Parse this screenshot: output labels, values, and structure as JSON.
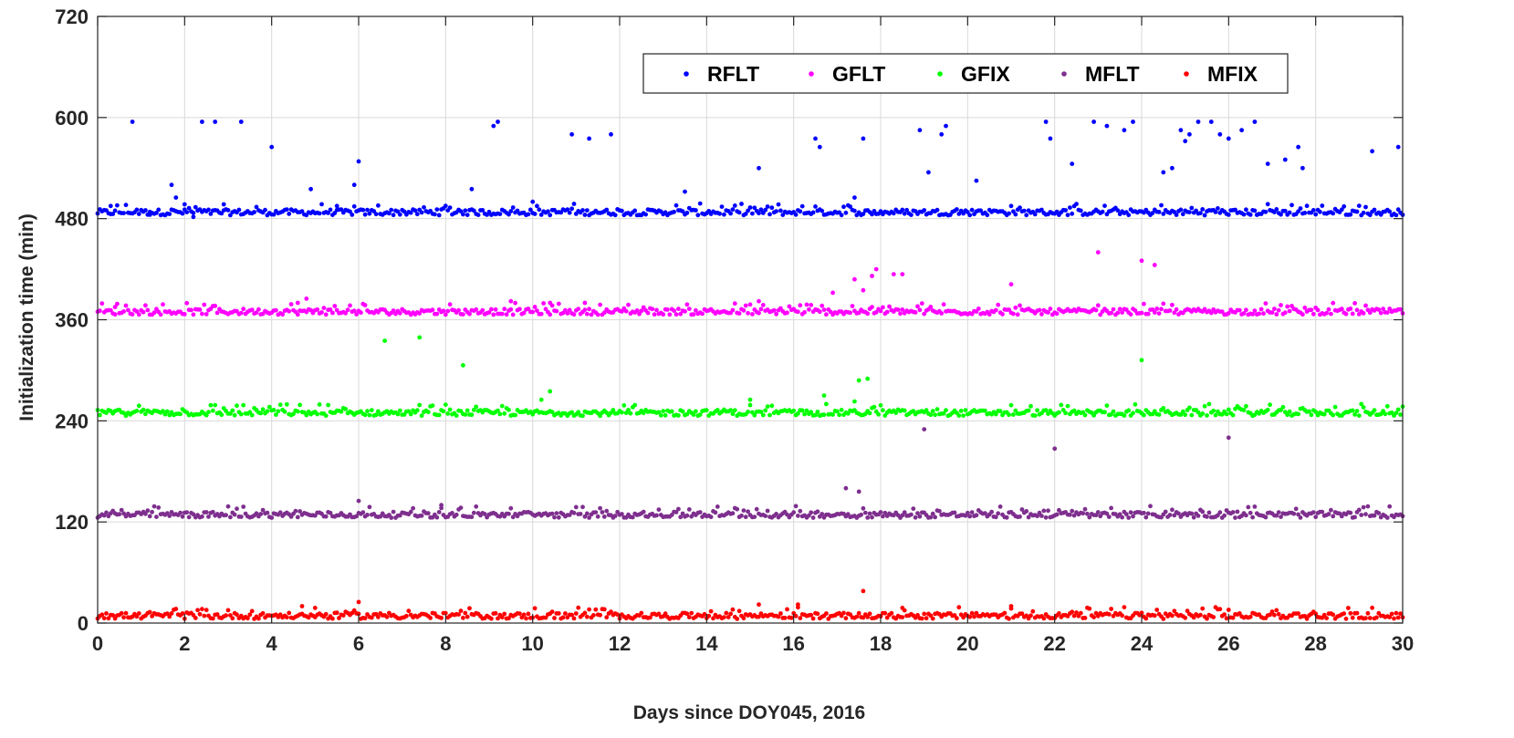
{
  "chart_data": {
    "type": "scatter",
    "title": "",
    "xlabel": "Days since DOY045, 2016",
    "ylabel": "Initialization time (min)",
    "xlim": [
      0,
      30
    ],
    "ylim": [
      0,
      720
    ],
    "xticks": [
      0,
      2,
      4,
      6,
      8,
      10,
      12,
      14,
      16,
      18,
      20,
      22,
      24,
      26,
      28,
      30
    ],
    "yticks": [
      0,
      120,
      240,
      360,
      480,
      600,
      720
    ],
    "grid": true,
    "legend_position": "top-right",
    "series": [
      {
        "name": "RFLT",
        "color": "#0000ff",
        "baseline": 486,
        "outliers": [
          [
            0.3,
            495
          ],
          [
            0.8,
            595
          ],
          [
            1.2,
            488
          ],
          [
            1.7,
            520
          ],
          [
            1.8,
            505
          ],
          [
            2.0,
            497
          ],
          [
            2.2,
            482
          ],
          [
            2.4,
            595
          ],
          [
            2.7,
            595
          ],
          [
            2.9,
            497
          ],
          [
            3.3,
            595
          ],
          [
            4.0,
            565
          ],
          [
            4.9,
            515
          ],
          [
            5.5,
            495
          ],
          [
            5.9,
            520
          ],
          [
            6.0,
            548
          ],
          [
            8.6,
            515
          ],
          [
            9.1,
            590
          ],
          [
            9.2,
            595
          ],
          [
            10.0,
            500
          ],
          [
            10.9,
            580
          ],
          [
            11.3,
            575
          ],
          [
            11.8,
            580
          ],
          [
            13.5,
            512
          ],
          [
            15.2,
            540
          ],
          [
            16.5,
            575
          ],
          [
            16.6,
            565
          ],
          [
            17.4,
            505
          ],
          [
            17.6,
            575
          ],
          [
            18.9,
            585
          ],
          [
            19.1,
            535
          ],
          [
            19.4,
            580
          ],
          [
            19.5,
            590
          ],
          [
            20.2,
            525
          ],
          [
            21.8,
            595
          ],
          [
            21.9,
            575
          ],
          [
            22.4,
            545
          ],
          [
            22.9,
            595
          ],
          [
            23.2,
            590
          ],
          [
            23.6,
            585
          ],
          [
            23.8,
            595
          ],
          [
            24.5,
            535
          ],
          [
            24.7,
            540
          ],
          [
            24.9,
            585
          ],
          [
            25.0,
            572
          ],
          [
            25.1,
            580
          ],
          [
            25.3,
            595
          ],
          [
            25.6,
            595
          ],
          [
            25.8,
            580
          ],
          [
            26.0,
            575
          ],
          [
            26.3,
            585
          ],
          [
            26.6,
            595
          ],
          [
            26.9,
            545
          ],
          [
            27.3,
            550
          ],
          [
            27.6,
            565
          ],
          [
            27.7,
            540
          ],
          [
            29.3,
            560
          ],
          [
            29.9,
            565
          ]
        ]
      },
      {
        "name": "GFLT",
        "color": "#ff00ff",
        "baseline": 368,
        "outliers": [
          [
            0.4,
            375
          ],
          [
            4.6,
            380
          ],
          [
            4.8,
            385
          ],
          [
            9.5,
            382
          ],
          [
            10.4,
            380
          ],
          [
            11.2,
            380
          ],
          [
            15.2,
            382
          ],
          [
            16.9,
            392
          ],
          [
            17.4,
            408
          ],
          [
            17.6,
            395
          ],
          [
            17.8,
            412
          ],
          [
            17.9,
            420
          ],
          [
            18.3,
            414
          ],
          [
            18.5,
            414
          ],
          [
            21.0,
            402
          ],
          [
            23.0,
            440
          ],
          [
            24.0,
            430
          ],
          [
            24.3,
            425
          ]
        ]
      },
      {
        "name": "GFIX",
        "color": "#00ff00",
        "baseline": 248,
        "outliers": [
          [
            6.6,
            335
          ],
          [
            7.4,
            339
          ],
          [
            8.4,
            306
          ],
          [
            10.4,
            275
          ],
          [
            10.2,
            265
          ],
          [
            15.0,
            265
          ],
          [
            16.7,
            270
          ],
          [
            17.4,
            263
          ],
          [
            17.5,
            288
          ],
          [
            17.7,
            290
          ],
          [
            24.0,
            312
          ]
        ]
      },
      {
        "name": "MFLT",
        "color": "#7e2f8e",
        "baseline": 127,
        "outliers": [
          [
            6.0,
            145
          ],
          [
            7.9,
            140
          ],
          [
            17.2,
            160
          ],
          [
            17.5,
            156
          ],
          [
            19.0,
            230
          ],
          [
            22.0,
            207
          ],
          [
            26.0,
            220
          ]
        ]
      },
      {
        "name": "MFIX",
        "color": "#ff0000",
        "baseline": 7,
        "outliers": [
          [
            4.7,
            20
          ],
          [
            5.0,
            18
          ],
          [
            6.0,
            25
          ],
          [
            15.2,
            22
          ],
          [
            16.1,
            22
          ],
          [
            17.6,
            38
          ],
          [
            18.5,
            18
          ],
          [
            21.0,
            20
          ]
        ]
      }
    ]
  }
}
